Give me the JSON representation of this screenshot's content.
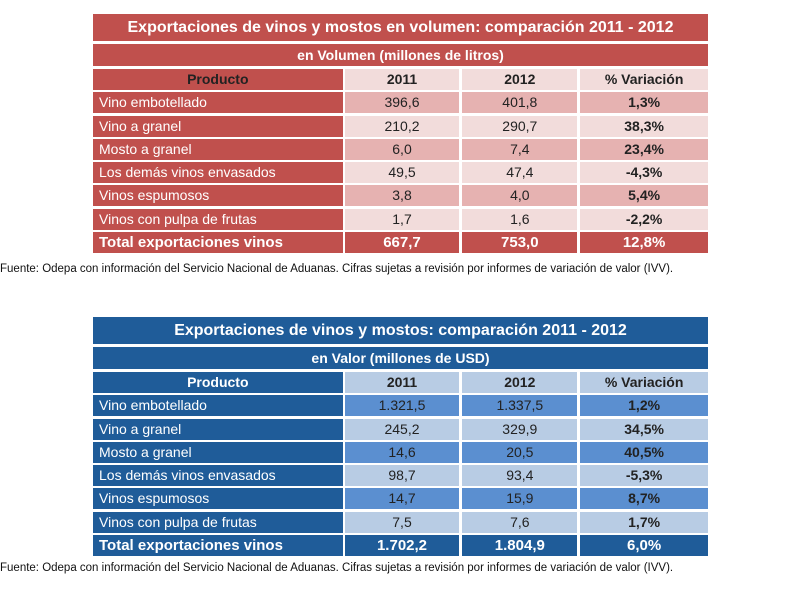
{
  "volume": {
    "title": "Exportaciones de vinos y mostos en volumen: comparación 2011 - 2012",
    "subtitle": "en Volumen (millones de litros)",
    "headers": [
      "Producto",
      "2011",
      "2012",
      "% Variación"
    ],
    "rows": [
      [
        "Vino embotellado",
        "396,6",
        "401,8",
        "1,3%"
      ],
      [
        "Vino a granel",
        "210,2",
        "290,7",
        "38,3%"
      ],
      [
        "Mosto a granel",
        "6,0",
        "7,4",
        "23,4%"
      ],
      [
        "Los demás vinos envasados",
        "49,5",
        "47,4",
        "-4,3%"
      ],
      [
        "Vinos espumosos",
        "3,8",
        "4,0",
        "5,4%"
      ],
      [
        "Vinos con pulpa de frutas",
        "1,7",
        "1,6",
        "-2,2%"
      ]
    ],
    "total": [
      "Total exportaciones vinos",
      "667,7",
      "753,0",
      "12,8%"
    ],
    "source": "Fuente: Odepa con información del Servicio Nacional de Aduanas. Cifras sujetas a revisión por informes de variación de valor (IVV)."
  },
  "value": {
    "title": "Exportaciones de vinos y mostos: comparación 2011 - 2012",
    "subtitle": "en Valor (millones de USD)",
    "headers": [
      "Producto",
      "2011",
      "2012",
      "% Variación"
    ],
    "rows": [
      [
        "Vino embotellado",
        "1.321,5",
        "1.337,5",
        "1,2%"
      ],
      [
        "Vino a granel",
        "245,2",
        "329,9",
        "34,5%"
      ],
      [
        "Mosto a granel",
        "14,6",
        "20,5",
        "40,5%"
      ],
      [
        "Los demás vinos envasados",
        "98,7",
        "93,4",
        "-5,3%"
      ],
      [
        "Vinos espumosos",
        "14,7",
        "15,9",
        "8,7%"
      ],
      [
        "Vinos con pulpa de frutas",
        "7,5",
        "7,6",
        "1,7%"
      ]
    ],
    "total": [
      "Total exportaciones vinos",
      "1.702,2",
      "1.804,9",
      "6,0%"
    ],
    "source": "Fuente: Odepa con información del Servicio Nacional de Aduanas. Cifras sujetas a revisión por informes de variación de valor (IVV)."
  }
}
